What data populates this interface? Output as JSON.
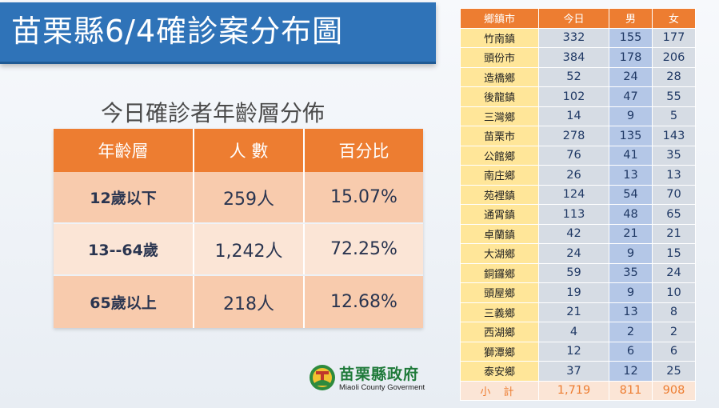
{
  "title": "苗栗縣6/4確診案分布圖",
  "age_section": {
    "subtitle": "今日確診者年齡層分佈",
    "headers": [
      "年齡層",
      "人 數",
      "百分比"
    ],
    "rows": [
      {
        "group": "12歲以下",
        "count": "259人",
        "percent": "15.07%"
      },
      {
        "group": "13--64歲",
        "count": "1,242人",
        "percent": "72.25%"
      },
      {
        "group": "65歲以上",
        "count": "218人",
        "percent": "12.68%"
      }
    ]
  },
  "logo": {
    "name": "苗栗縣政府",
    "english": "Miaoli County Goverment"
  },
  "town_table": {
    "headers": [
      "鄉鎮市",
      "今日",
      "男",
      "女"
    ],
    "rows": [
      {
        "town": "竹南鎮",
        "today": "332",
        "male": "155",
        "female": "177"
      },
      {
        "town": "頭份市",
        "today": "384",
        "male": "178",
        "female": "206"
      },
      {
        "town": "造橋鄉",
        "today": "52",
        "male": "24",
        "female": "28"
      },
      {
        "town": "後龍鎮",
        "today": "102",
        "male": "47",
        "female": "55"
      },
      {
        "town": "三灣鄉",
        "today": "14",
        "male": "9",
        "female": "5"
      },
      {
        "town": "苗栗市",
        "today": "278",
        "male": "135",
        "female": "143"
      },
      {
        "town": "公館鄉",
        "today": "76",
        "male": "41",
        "female": "35"
      },
      {
        "town": "南庄鄉",
        "today": "26",
        "male": "13",
        "female": "13"
      },
      {
        "town": "苑裡鎮",
        "today": "124",
        "male": "54",
        "female": "70"
      },
      {
        "town": "通霄鎮",
        "today": "113",
        "male": "48",
        "female": "65"
      },
      {
        "town": "卓蘭鎮",
        "today": "42",
        "male": "21",
        "female": "21"
      },
      {
        "town": "大湖鄉",
        "today": "24",
        "male": "9",
        "female": "15"
      },
      {
        "town": "銅鑼鄉",
        "today": "59",
        "male": "35",
        "female": "24"
      },
      {
        "town": "頭屋鄉",
        "today": "19",
        "male": "9",
        "female": "10"
      },
      {
        "town": "三義鄉",
        "today": "21",
        "male": "13",
        "female": "8"
      },
      {
        "town": "西湖鄉",
        "today": "4",
        "male": "2",
        "female": "2"
      },
      {
        "town": "獅潭鄉",
        "today": "12",
        "male": "6",
        "female": "6"
      },
      {
        "town": "泰安鄉",
        "today": "37",
        "male": "12",
        "female": "25"
      }
    ],
    "total": {
      "label": "小 計",
      "today": "1,719",
      "male": "811",
      "female": "908"
    }
  },
  "colors": {
    "title_bar": "#2f73b8",
    "header_orange": "#ed7d31",
    "row_peach": "#f8cbad",
    "row_light_peach": "#fbe5d6",
    "town_yellow": "#ffe699",
    "male_blue": "#b4c7e7",
    "grey_blue": "#d6dce4"
  }
}
